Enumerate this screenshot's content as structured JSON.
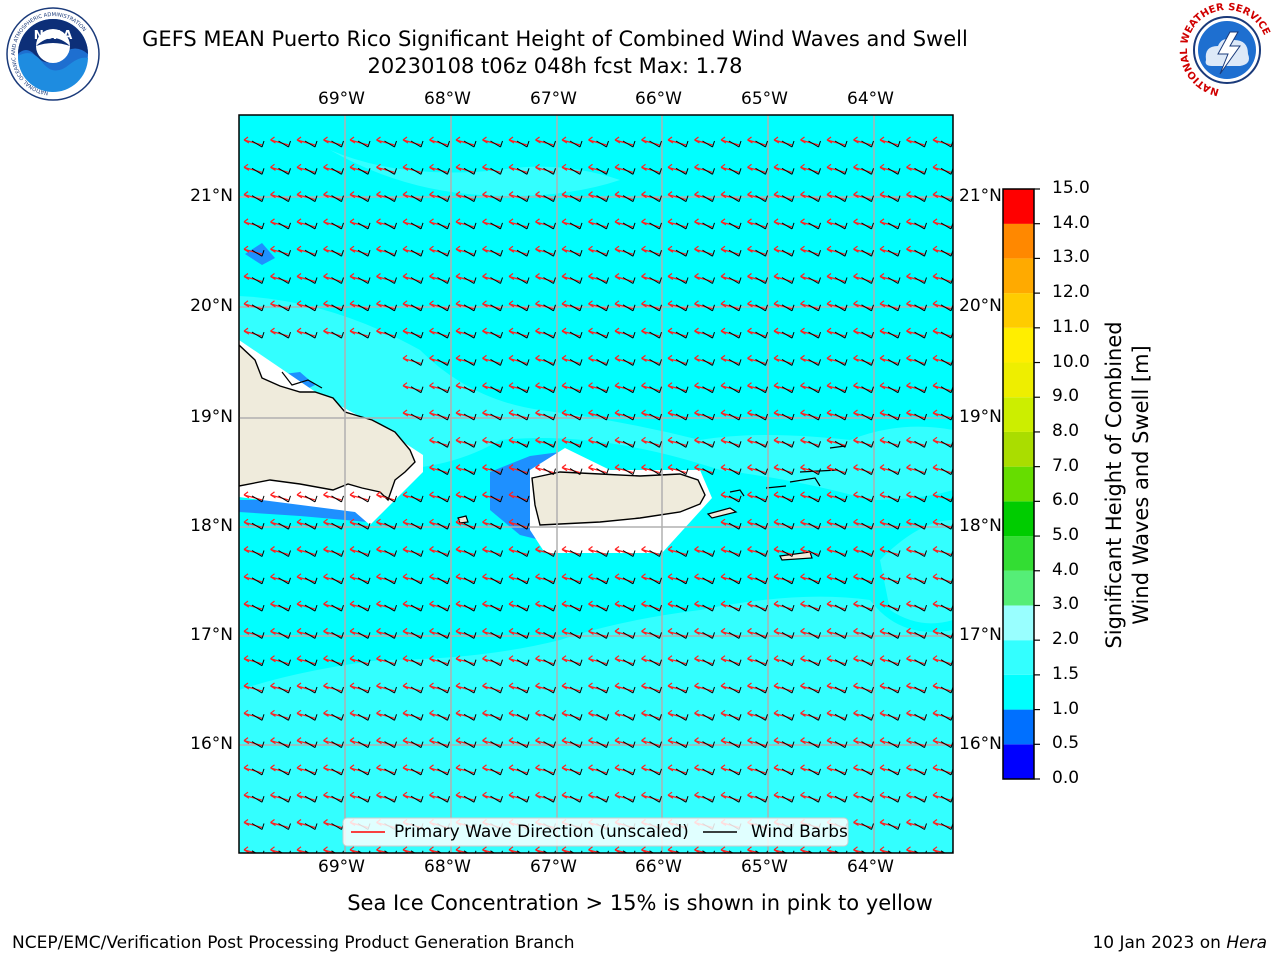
{
  "title": {
    "line1": "GEFS MEAN Puerto Rico Significant Height of Combined Wind Waves and Swell",
    "line2": "20230108 t06z 048h fcst   Max: 1.78"
  },
  "map": {
    "lon_ticks": [
      "69°W",
      "68°W",
      "67°W",
      "66°W",
      "65°W",
      "64°W"
    ],
    "lat_ticks": [
      "21°N",
      "20°N",
      "19°N",
      "18°N",
      "17°N",
      "16°N"
    ],
    "ocean_color": "#00ffff",
    "ocean_light_color": "#33ffff",
    "low_wave_color": "#1e90ff",
    "land_color": "#efebdc"
  },
  "legend": {
    "wave_direction": "Primary Wave Direction (unscaled)",
    "wind_barbs": "Wind Barbs"
  },
  "colorbar": {
    "title_line1": "Significant Height of Combined",
    "title_line2": "Wind Waves and Swell [m]",
    "ticks": [
      "15.0",
      "14.0",
      "13.0",
      "12.0",
      "11.0",
      "10.0",
      "9.0",
      "8.0",
      "7.0",
      "6.0",
      "5.0",
      "4.0",
      "3.0",
      "2.0",
      "1.5",
      "1.0",
      "0.5",
      "0.0"
    ],
    "colors": [
      "#0000ff",
      "#0070ff",
      "#00ffff",
      "#33ffff",
      "#99ffff",
      "#55ee77",
      "#33dd33",
      "#00cc00",
      "#66dd00",
      "#aadd00",
      "#ccee00",
      "#eeee00",
      "#ffee00",
      "#ffcc00",
      "#ffaa00",
      "#ff8800",
      "#ff6600",
      "#ff3300",
      "#ff0000"
    ]
  },
  "note": "Sea Ice Concentration > 15% is shown in pink to yellow",
  "footer": {
    "left": "NCEP/EMC/Verification Post Processing Product Generation Branch",
    "right_date": "10 Jan 2023 on ",
    "right_host": "Hera"
  },
  "logos": {
    "noaa_text": "NOAA",
    "noaa_ring": "NATIONAL OCEANIC AND ATMOSPHERIC ADMINISTRATION",
    "noaa_ring_bottom": "U.S. DEPARTMENT OF COMMERCE",
    "nws_ring": "NATIONAL WEATHER SERVICE"
  }
}
